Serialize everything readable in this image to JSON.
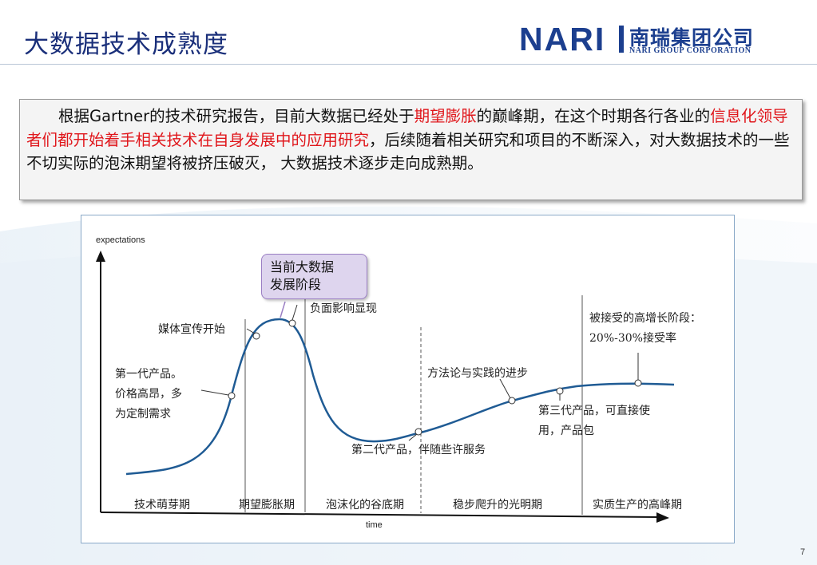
{
  "slide": {
    "title": "大数据技术成熟度",
    "page_number": "7"
  },
  "logo": {
    "mark": "NARI",
    "cn": "南瑞集团公司",
    "en": "NARI GROUP CORPORATION"
  },
  "body": {
    "seg1": "根据Gartner的技术研究报告，目前大数据已经处于",
    "seg2": "期望膨胀",
    "seg3": "的巅峰期，在这个时期各行各业的",
    "seg4": "信息化领导者们都开始着手相关技术在自身发展中的应用研究",
    "seg5": "，后续随着相关研究和项目的不断深入，对大数据技术的一些不切实际的泡沫期望将被挤压破灭， 大数据技术逐步走向成熟期。"
  },
  "chart_data": {
    "type": "line",
    "ylabel": "expectations",
    "xlabel": "time",
    "callout": "当前大数据\n发展阶段",
    "callout_line1": "当前大数据",
    "callout_line2": "发展阶段",
    "phases": [
      "技术萌芽期",
      "期望膨胀期",
      "泡沫化的谷底期",
      "稳步爬升的光明期",
      "实质生产的高峰期"
    ],
    "annotations": {
      "gen1_a": "第一代产品。",
      "gen1_b": "价格高昂，多",
      "gen1_c": "为定制需求",
      "media": "媒体宣传开始",
      "negative": "负面影响显现",
      "gen2": "第二代产品，伴随些许服务",
      "method": "方法论与实践的进步",
      "gen3_a": "第三代产品，可直接使",
      "gen3_b": "用，产品包",
      "accepted_a": "被接受的高增长阶段：",
      "accepted_b": "20%-30%接受率"
    },
    "colors": {
      "curve": "#1f5b94",
      "highlight_text": "#e0161b",
      "callout_fill": "#ded5ee"
    }
  }
}
